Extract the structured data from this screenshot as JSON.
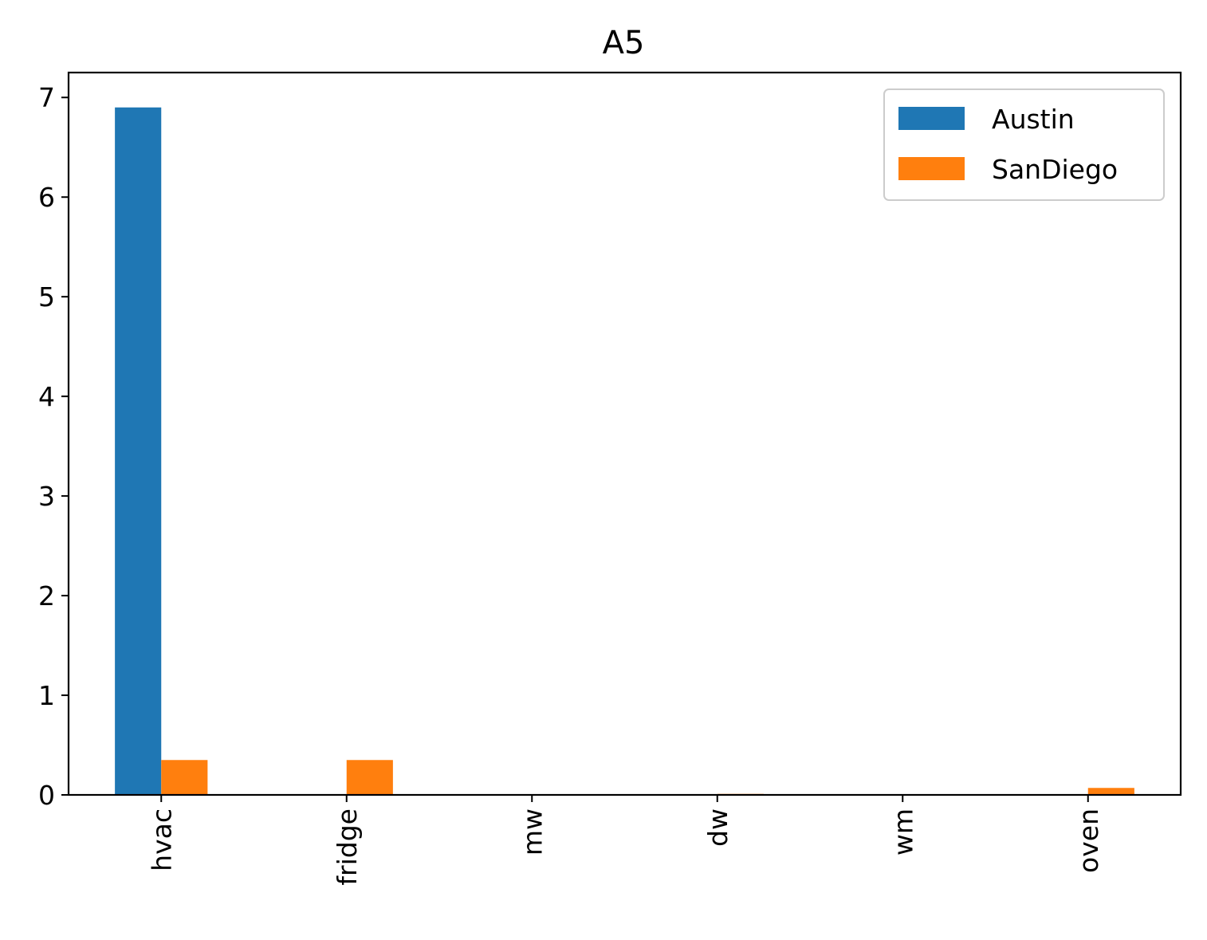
{
  "chart_data": {
    "type": "bar",
    "title": "A5",
    "xlabel": "",
    "ylabel": "",
    "categories": [
      "hvac",
      "fridge",
      "mw",
      "dw",
      "wm",
      "oven"
    ],
    "series": [
      {
        "name": "Austin",
        "color": "#1f77b4",
        "values": [
          6.9,
          0.0,
          0.0,
          0.0,
          0.0,
          0.0
        ]
      },
      {
        "name": "SanDiego",
        "color": "#ff7f0e",
        "values": [
          0.35,
          0.35,
          0.0,
          0.01,
          0.0,
          0.07
        ]
      }
    ],
    "ylim": [
      0,
      7.25
    ],
    "yticks": [
      0,
      1,
      2,
      3,
      4,
      5,
      6,
      7
    ],
    "grid": false,
    "legend_position": "top-right"
  }
}
